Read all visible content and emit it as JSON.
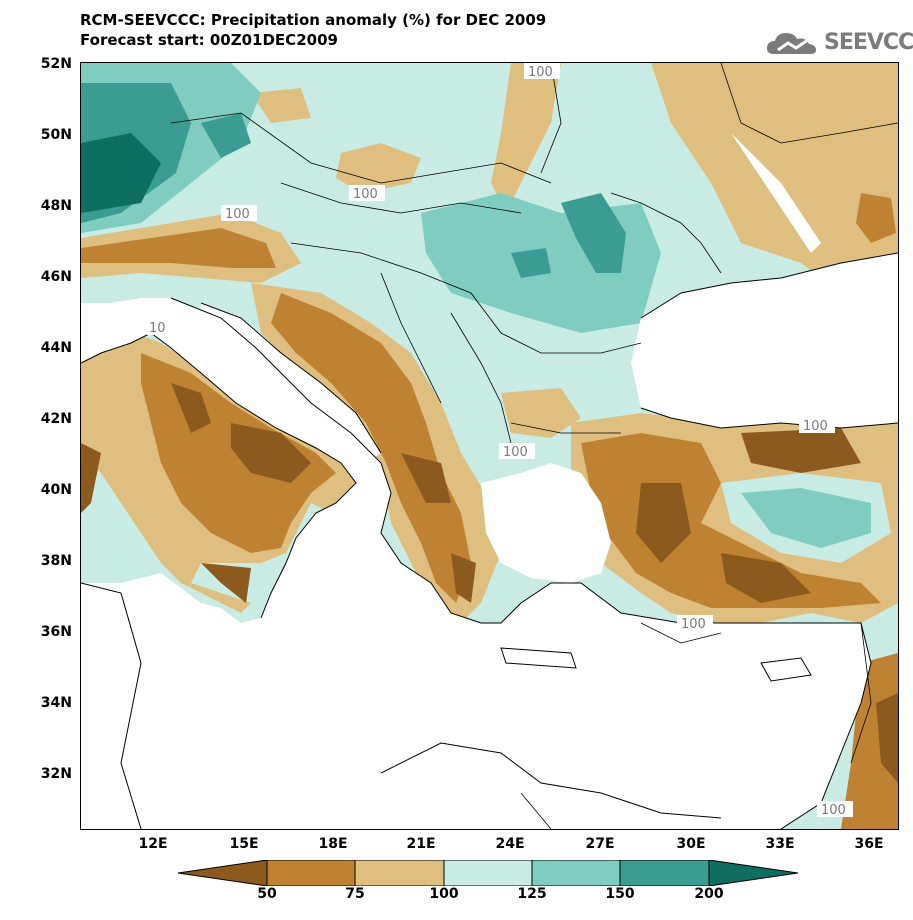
{
  "title": {
    "line1": "RCM-SEEVCCC: Precipitation anomaly (%) for DEC 2009",
    "line2": "Forecast start: 00Z01DEC2009"
  },
  "logo": {
    "text": "SEEVCCC",
    "icon": "cloud-icon"
  },
  "axes": {
    "lat_labels": [
      "52N",
      "50N",
      "48N",
      "46N",
      "44N",
      "42N",
      "40N",
      "38N",
      "36N",
      "34N",
      "32N"
    ],
    "lon_labels": [
      "12E",
      "15E",
      "18E",
      "21E",
      "24E",
      "27E",
      "30E",
      "33E",
      "36E"
    ]
  },
  "colorbar": {
    "labels": [
      "50",
      "75",
      "100",
      "125",
      "150",
      "200"
    ],
    "colors": [
      "#8c5a1c",
      "#bf8232",
      "#dfbf80",
      "#c8ebe4",
      "#7fcdc0",
      "#3a9c92",
      "#0e6e62"
    ]
  },
  "contour_labels": [
    "100",
    "100",
    "100",
    "10",
    "100",
    "100",
    "100",
    "100"
  ],
  "colors": {
    "sea": "#ffffff",
    "very_dry": "#8c5a1c",
    "dry": "#bf8232",
    "slightly_dry": "#dfbf80",
    "normal_wet": "#c8ebe4",
    "wet": "#7fcdc0",
    "very_wet": "#3a9c92",
    "extreme_wet": "#0e6e62"
  }
}
